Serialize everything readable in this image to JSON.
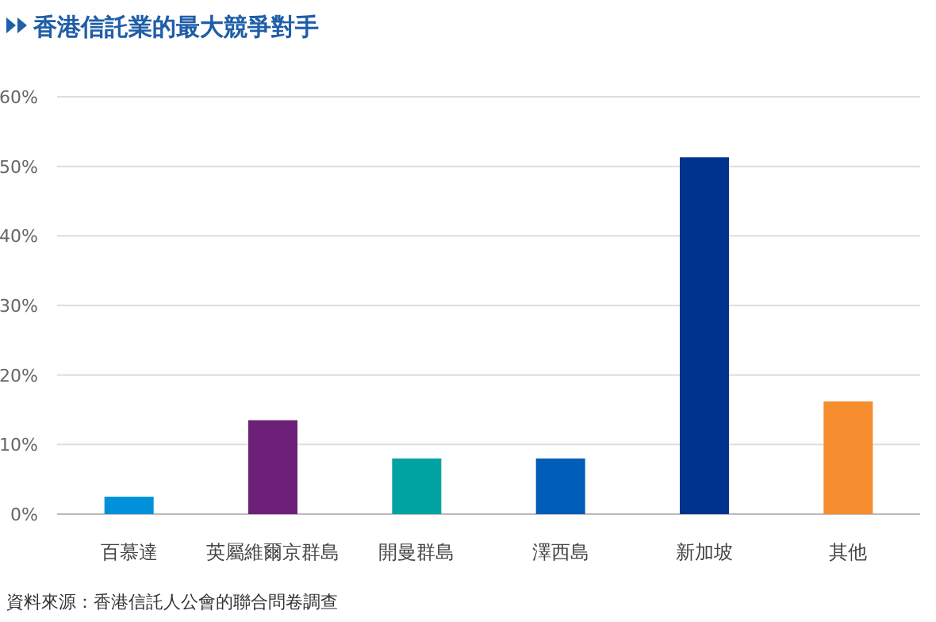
{
  "chart_data": {
    "type": "bar",
    "title": "香港信託業的最大競爭對手",
    "categories": [
      "百慕達",
      "英屬維爾京群島",
      "開曼群島",
      "澤西島",
      "新加坡",
      "其他"
    ],
    "values": [
      2.5,
      13.5,
      8,
      8,
      51.3,
      16.2
    ],
    "colors": [
      "#0091da",
      "#6d2077",
      "#00a3a1",
      "#005eb8",
      "#00338d",
      "#f68d2e"
    ],
    "ylim": [
      0,
      60
    ],
    "yticks": [
      {
        "value": 0,
        "label": "0%"
      },
      {
        "value": 10,
        "label": "10%"
      },
      {
        "value": 20,
        "label": "20%"
      },
      {
        "value": 30,
        "label": "30%"
      },
      {
        "value": 40,
        "label": "40%"
      },
      {
        "value": 50,
        "label": "50%"
      },
      {
        "value": 60,
        "label": "60%"
      }
    ],
    "grid": "y",
    "annotations": [
      "資料來源：香港信託人公會的聯合問卷調查"
    ]
  }
}
